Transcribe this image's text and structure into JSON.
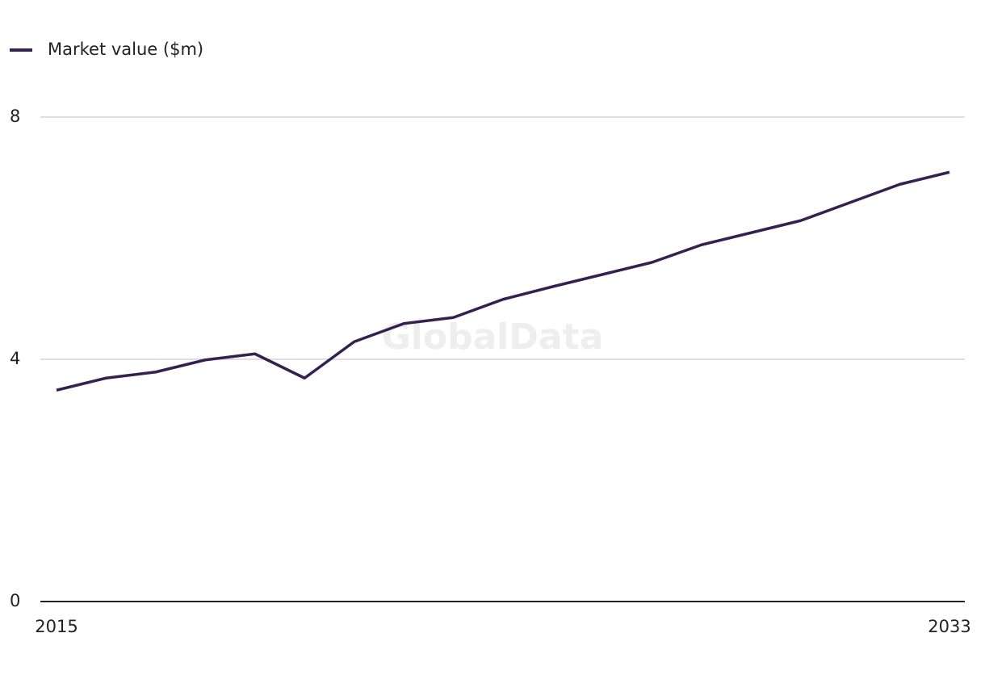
{
  "chart_data": {
    "type": "line",
    "watermark": "GlobalData",
    "categories": [
      "2015",
      null,
      null,
      null,
      null,
      null,
      null,
      null,
      null,
      null,
      null,
      null,
      null,
      null,
      null,
      null,
      null,
      null,
      "2033"
    ],
    "series": [
      {
        "name": "Market value ($m)",
        "color": "#35214f",
        "values": [
          3.49,
          3.69,
          3.79,
          3.99,
          4.09,
          3.69,
          4.29,
          4.59,
          4.69,
          4.99,
          5.2,
          5.4,
          5.6,
          5.89,
          6.09,
          6.29,
          6.59,
          6.89,
          7.09
        ]
      }
    ],
    "ylim": [
      0,
      8
    ],
    "yticks": [
      0,
      4,
      8
    ],
    "grid": true,
    "legend": "top-left"
  }
}
